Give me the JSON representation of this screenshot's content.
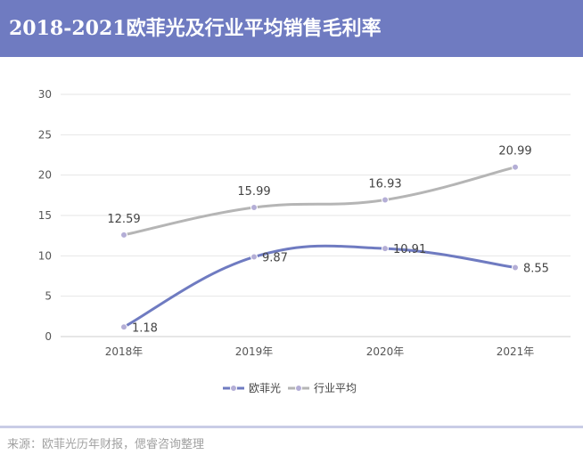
{
  "title": "2018-2021欧菲光及行业平均销售毛利率",
  "source": "来源：欧菲光历年财报，偲睿咨询整理",
  "chart_data": {
    "type": "line",
    "title": "2018-2021欧菲光及行业平均销售毛利率",
    "categories": [
      "2018年",
      "2019年",
      "2020年",
      "2021年"
    ],
    "series": [
      {
        "name": "欧菲光",
        "values": [
          1.18,
          9.87,
          10.91,
          8.55
        ],
        "color": "#6f7bc1",
        "label_pos": "right"
      },
      {
        "name": "行业平均",
        "values": [
          12.59,
          15.99,
          16.93,
          20.99
        ],
        "color": "#b5b5b5",
        "label_pos": "above"
      }
    ],
    "ylim": [
      0,
      30
    ],
    "yticks": [
      0,
      5,
      10,
      15,
      20,
      25,
      30
    ],
    "grid": true,
    "legend": "bottom-center",
    "xlabel": "",
    "ylabel": ""
  }
}
